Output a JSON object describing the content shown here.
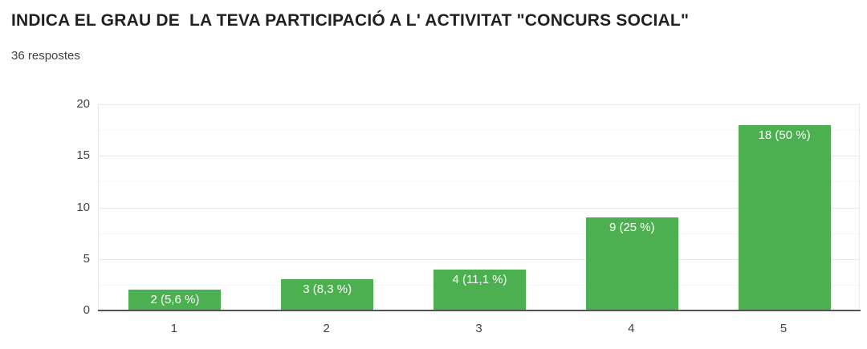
{
  "header": {
    "title": "INDICA EL GRAU DE  LA TEVA PARTICIPACIÓ A L' ACTIVITAT \"CONCURS SOCIAL\"",
    "responses_label": "36 respostes"
  },
  "chart_data": {
    "type": "bar",
    "title": "INDICA EL GRAU DE  LA TEVA PARTICIPACIÓ A L' ACTIVITAT \"CONCURS SOCIAL\"",
    "categories": [
      "1",
      "2",
      "3",
      "4",
      "5"
    ],
    "values": [
      2,
      3,
      4,
      9,
      18
    ],
    "bar_labels": [
      "2 (5,6 %)",
      "3 (8,3 %)",
      "4 (11,1 %)",
      "9 (25 %)",
      "18 (50 %)"
    ],
    "total_responses": 36,
    "xlabel": "",
    "ylabel": "",
    "ylim": [
      0,
      20
    ],
    "yticks": [
      0,
      5,
      10,
      15,
      20
    ],
    "minor_gridlines": [
      2.5,
      7.5,
      12.5,
      17.5
    ],
    "grid": true,
    "legend_position": "none",
    "colors": {
      "bar": "#4caf50",
      "bar_label": "#ffffff",
      "gridline_major": "#e9e9e9",
      "gridline_minor": "#f5f5f5",
      "baseline": "#555555",
      "ytick_text": "#444444",
      "xtick_text": "#424242",
      "title_text": "#212121",
      "subtitle_text": "#424242",
      "background": "#ffffff"
    }
  }
}
